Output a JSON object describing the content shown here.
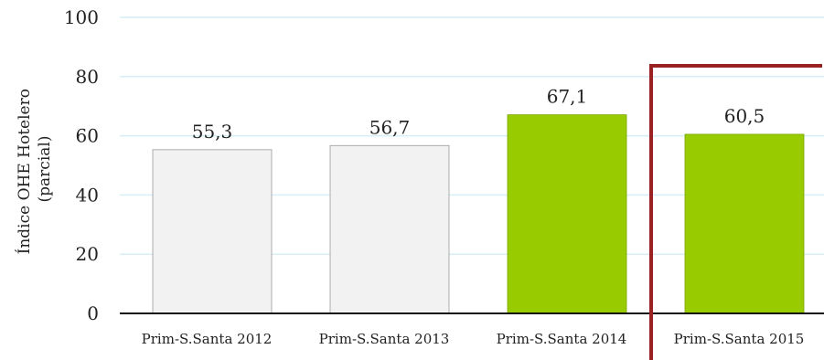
{
  "chart_data": {
    "type": "bar",
    "categories": [
      "Prim-S.Santa 2012",
      "Prim-S.Santa 2013",
      "Prim-S.Santa 2014",
      "Prim-S.Santa 2015"
    ],
    "values": [
      55.3,
      56.7,
      67.1,
      60.5
    ],
    "data_labels": [
      "55,3",
      "56,7",
      "67,1",
      "60,5"
    ],
    "ylabel_lines": [
      "Índice OHE Hotelero",
      "(parcial)"
    ],
    "ylim": [
      0,
      100
    ],
    "yticks": [
      0,
      20,
      40,
      60,
      80,
      100
    ],
    "grid": true,
    "colors": {
      "bars": [
        "#f2f2f2",
        "#f2f2f2",
        "#99cc00",
        "#99cc00"
      ],
      "grid": "#d6eef6",
      "highlight_frame": "#9b2222"
    }
  }
}
